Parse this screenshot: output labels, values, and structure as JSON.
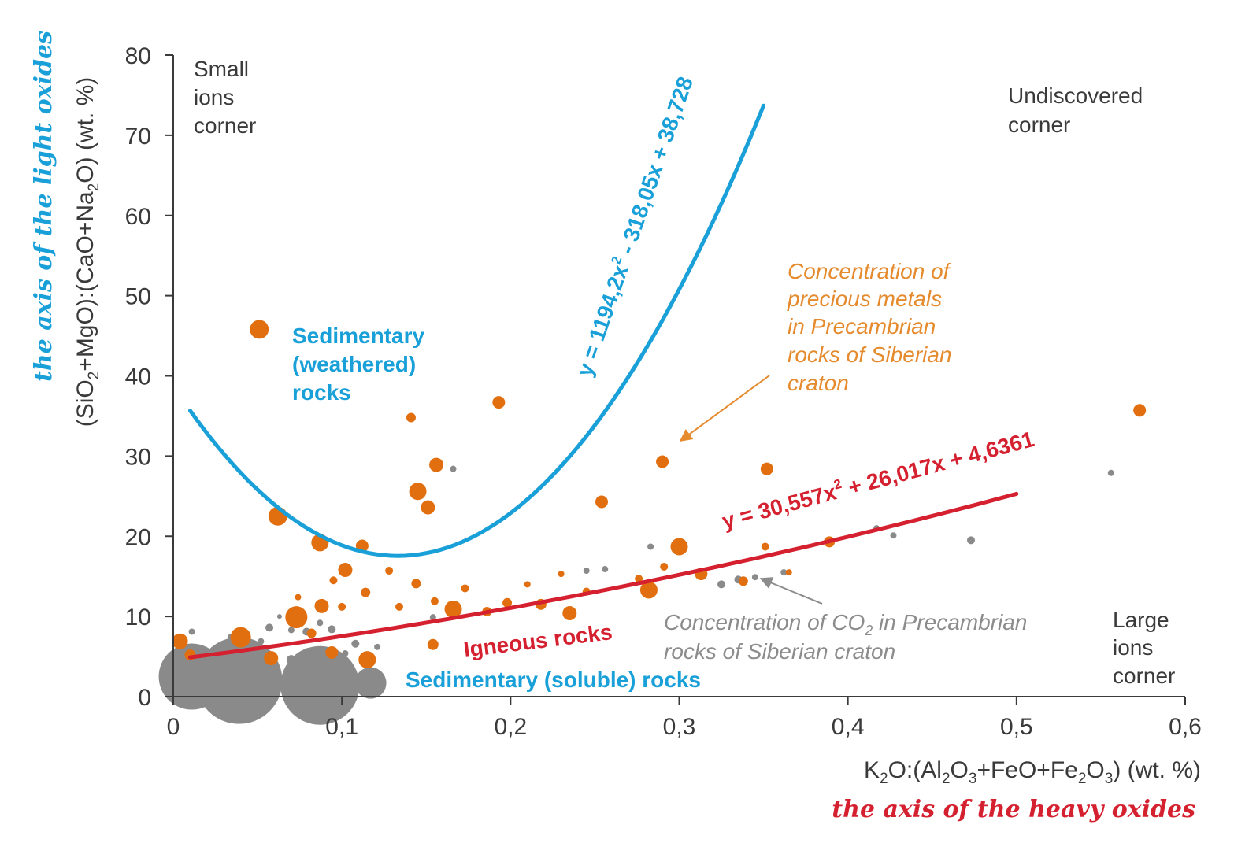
{
  "chart_data": {
    "type": "scatter",
    "xlim": [
      0,
      0.6
    ],
    "ylim": [
      0,
      80
    ],
    "x_ticks": [
      {
        "value": 0,
        "label": "0"
      },
      {
        "value": 0.1,
        "label": "0,1"
      },
      {
        "value": 0.2,
        "label": "0,2"
      },
      {
        "value": 0.3,
        "label": "0,3"
      },
      {
        "value": 0.4,
        "label": "0,4"
      },
      {
        "value": 0.5,
        "label": "0,5"
      },
      {
        "value": 0.6,
        "label": "0,6"
      }
    ],
    "y_ticks": [
      {
        "value": 0,
        "label": "0"
      },
      {
        "value": 10,
        "label": "10"
      },
      {
        "value": 20,
        "label": "20"
      },
      {
        "value": 30,
        "label": "30"
      },
      {
        "value": 40,
        "label": "40"
      },
      {
        "value": 50,
        "label": "50"
      },
      {
        "value": 60,
        "label": "60"
      },
      {
        "value": 70,
        "label": "70"
      },
      {
        "value": 80,
        "label": "80"
      }
    ],
    "xlabel": {
      "prefix": "K",
      "s1": "2",
      "mid1": "O:(Al",
      "s2": "2",
      "mid2": "O",
      "s3": "3",
      "mid3": "+FeO+Fe",
      "s4": "2",
      "mid4": "O",
      "s5": "3",
      "suffix": ") (wt. %)"
    },
    "ylabel": {
      "prefix": "(SiO",
      "s1": "2",
      "mid1": "+MgO):(CaO+Na",
      "s2": "2",
      "suffix": "O) (wt. %)"
    },
    "x_axis_name": "the axis of the heavy oxides",
    "y_axis_name": "the axis of the light oxides",
    "corners": {
      "small": [
        "Small",
        "ions",
        "corner"
      ],
      "undiscovered": [
        "Undiscovered",
        "corner"
      ],
      "large": [
        "Large",
        "ions",
        "corner"
      ]
    },
    "series": [
      {
        "name": "Sedimentary (weathered) rocks trend",
        "kind": "curve",
        "color": "#1aa0d8",
        "equation": {
          "a": "y = 1194,2x",
          "sup": "2",
          "b": " - 318,05x + 38,728"
        },
        "x_range": [
          0.01,
          0.35
        ],
        "coef": [
          1194.2,
          -318.05,
          38.728
        ]
      },
      {
        "name": "Igneous rocks trend",
        "kind": "curve",
        "color": "#d52030",
        "equation": {
          "a": "y = 30,557x",
          "sup": "2",
          "b": " + 26,017x + 4,6361"
        },
        "x_range": [
          0.01,
          0.5
        ],
        "coef": [
          30.557,
          26.017,
          4.6361
        ]
      }
    ],
    "region_labels": {
      "weathered": [
        "Sedimentary",
        "(weathered)",
        "rocks"
      ],
      "igneous": "Igneous rocks",
      "soluble": "Sedimentary (soluble) rocks"
    },
    "annotations": {
      "precious": [
        "Concentration of",
        "precious metals",
        "in Precambrian",
        "rocks of Siberian",
        "craton"
      ],
      "co2": {
        "line1a": "Concentration of CO",
        "sub": "2",
        "line1b": " in Precambrian",
        "line2": "rocks of Siberian craton"
      }
    },
    "colors": {
      "blue": "#1aa0d8",
      "red": "#d52030",
      "orange": "#e26f0f",
      "gray": "#8a8a8a",
      "axis": "#3a3a3a"
    },
    "points_precious_metals": [
      [
        0.051,
        45.8,
        12
      ],
      [
        0.062,
        22.5,
        12
      ],
      [
        0.087,
        19.2,
        11
      ],
      [
        0.112,
        18.8,
        8
      ],
      [
        0.193,
        36.7,
        8
      ],
      [
        0.141,
        34.8,
        6
      ],
      [
        0.156,
        28.9,
        9
      ],
      [
        0.145,
        25.6,
        11
      ],
      [
        0.151,
        23.6,
        9
      ],
      [
        0.254,
        24.3,
        8
      ],
      [
        0.29,
        29.3,
        8
      ],
      [
        0.352,
        28.4,
        8
      ],
      [
        0.573,
        35.7,
        8
      ],
      [
        0.3,
        18.7,
        11
      ],
      [
        0.102,
        15.8,
        9
      ],
      [
        0.114,
        13.0,
        6
      ],
      [
        0.073,
        9.9,
        14
      ],
      [
        0.088,
        11.3,
        9
      ],
      [
        0.04,
        7.4,
        13
      ],
      [
        0.004,
        6.9,
        10
      ],
      [
        0.01,
        5.2,
        7
      ],
      [
        0.058,
        4.8,
        9
      ],
      [
        0.094,
        5.5,
        8
      ],
      [
        0.115,
        4.6,
        11
      ],
      [
        0.166,
        10.9,
        11
      ],
      [
        0.198,
        11.7,
        6
      ],
      [
        0.218,
        11.5,
        7
      ],
      [
        0.235,
        10.4,
        9
      ],
      [
        0.282,
        13.3,
        11
      ],
      [
        0.313,
        15.3,
        8
      ],
      [
        0.338,
        14.4,
        6
      ],
      [
        0.389,
        19.3,
        7
      ],
      [
        0.351,
        18.7,
        5
      ],
      [
        0.144,
        14.1,
        6
      ],
      [
        0.173,
        13.5,
        5
      ],
      [
        0.1,
        11.2,
        5
      ],
      [
        0.134,
        11.2,
        5
      ],
      [
        0.155,
        11.9,
        5
      ],
      [
        0.186,
        10.6,
        6
      ],
      [
        0.291,
        16.2,
        5
      ],
      [
        0.21,
        14.0,
        4
      ],
      [
        0.245,
        13.1,
        5
      ],
      [
        0.276,
        14.7,
        5
      ],
      [
        0.154,
        6.5,
        7
      ],
      [
        0.128,
        15.7,
        5
      ],
      [
        0.074,
        12.4,
        4
      ],
      [
        0.082,
        7.9,
        6
      ],
      [
        0.095,
        14.5,
        5
      ],
      [
        0.23,
        15.3,
        4
      ],
      [
        0.365,
        15.5,
        4
      ]
    ],
    "points_co2": [
      [
        0.011,
        2.5,
        42
      ],
      [
        0.039,
        2.0,
        55
      ],
      [
        0.087,
        1.4,
        50
      ],
      [
        0.117,
        1.7,
        20
      ],
      [
        0.028,
        5.0,
        5
      ],
      [
        0.045,
        5.6,
        7
      ],
      [
        0.058,
        5.0,
        6
      ],
      [
        0.07,
        4.6,
        6
      ],
      [
        0.08,
        5.6,
        5
      ],
      [
        0.094,
        8.4,
        5
      ],
      [
        0.108,
        6.6,
        5
      ],
      [
        0.057,
        8.6,
        5
      ],
      [
        0.011,
        8.1,
        4
      ],
      [
        0.034,
        7.4,
        4
      ],
      [
        0.07,
        8.3,
        4
      ],
      [
        0.052,
        6.9,
        4
      ],
      [
        0.079,
        8.1,
        5
      ],
      [
        0.154,
        9.9,
        4
      ],
      [
        0.166,
        28.4,
        4
      ],
      [
        0.245,
        15.7,
        4
      ],
      [
        0.256,
        15.9,
        4
      ],
      [
        0.283,
        18.7,
        4
      ],
      [
        0.325,
        14.0,
        5
      ],
      [
        0.335,
        14.6,
        5
      ],
      [
        0.345,
        14.9,
        4
      ],
      [
        0.362,
        15.5,
        4
      ],
      [
        0.417,
        21.0,
        4
      ],
      [
        0.427,
        20.1,
        4
      ],
      [
        0.473,
        19.5,
        5
      ],
      [
        0.556,
        27.9,
        4
      ],
      [
        0.102,
        5.4,
        4
      ],
      [
        0.121,
        6.2,
        4
      ],
      [
        0.087,
        9.2,
        4
      ],
      [
        0.063,
        10.0,
        3
      ]
    ]
  }
}
